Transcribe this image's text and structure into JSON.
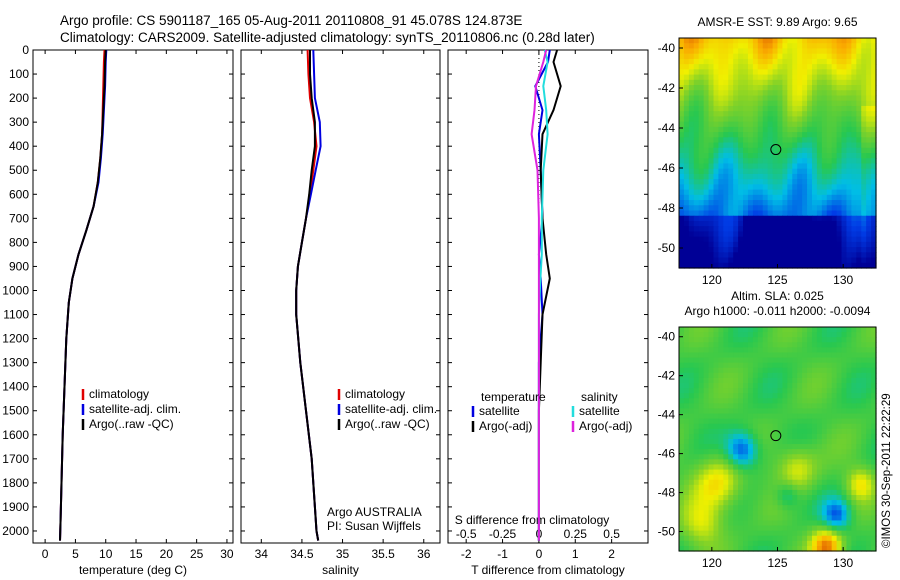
{
  "header": {
    "line1": "Argo profile: CS 5901187_165 05-Aug-2011 20110808_91 45.078S 124.873E",
    "line2": "Climatology: CARS2009. Satellite-adjusted climatology: synTS_20110806.nc (0.28d later)"
  },
  "timestamp": "©IMOS 30-Sep-2011 22:22:29",
  "colors": {
    "climatology": "#e00000",
    "satellite": "#0000e0",
    "argo": "#000000",
    "sal_satellite": "#22dddd",
    "sal_argo": "#dd22dd"
  },
  "chart_data": [
    {
      "type": "line",
      "xlabel": "temperature (deg C)",
      "ylabel": "",
      "xlim": [
        -2,
        31
      ],
      "ylim": [
        2050,
        0
      ],
      "xticks": [
        0,
        5,
        10,
        15,
        20,
        25,
        30
      ],
      "yticks": [
        0,
        100,
        200,
        300,
        400,
        500,
        600,
        700,
        800,
        900,
        1000,
        1100,
        1200,
        1300,
        1400,
        1500,
        1600,
        1700,
        1800,
        1900,
        2000
      ],
      "legend": [
        "climatology",
        "satellite-adj. clim.",
        "Argo(..raw -QC)"
      ],
      "series": [
        {
          "name": "climatology",
          "x": [
            9.8,
            9.7,
            9.6,
            9.5,
            9.4,
            9.1,
            8.7,
            8.0,
            6.8,
            5.5,
            4.5,
            3.9,
            3.5,
            3.2,
            2.9,
            2.7,
            2.55,
            2.45
          ],
          "y": [
            0,
            50,
            150,
            250,
            350,
            450,
            550,
            650,
            750,
            850,
            950,
            1050,
            1200,
            1400,
            1600,
            1800,
            1950,
            2040
          ]
        },
        {
          "name": "satellite-adj. clim.",
          "x": [
            10.1,
            10.0,
            9.9,
            9.7,
            9.5,
            9.2,
            8.8,
            8.0,
            6.8,
            5.5,
            4.5,
            3.9,
            3.5,
            3.2,
            2.9,
            2.7,
            2.55,
            2.45
          ],
          "y": [
            0,
            50,
            150,
            250,
            350,
            450,
            550,
            650,
            750,
            850,
            950,
            1050,
            1200,
            1400,
            1600,
            1800,
            1950,
            2040
          ]
        },
        {
          "name": "Argo(..raw -QC)",
          "x": [
            10.0,
            9.9,
            9.8,
            9.6,
            9.4,
            9.1,
            8.7,
            8.0,
            6.8,
            5.5,
            4.5,
            3.9,
            3.5,
            3.2,
            2.9,
            2.7,
            2.55,
            2.45
          ],
          "y": [
            0,
            50,
            150,
            250,
            350,
            450,
            550,
            650,
            750,
            850,
            950,
            1050,
            1200,
            1400,
            1600,
            1800,
            1950,
            2040
          ]
        }
      ]
    },
    {
      "type": "line",
      "xlabel": "salinity",
      "xlim": [
        33.75,
        36.2
      ],
      "ylim": [
        2050,
        0
      ],
      "xticks": [
        34,
        34.5,
        35,
        35.5,
        36
      ],
      "legend": [
        "climatology",
        "satellite-adj. clim.",
        "Argo(..raw -QC)"
      ],
      "annotation": [
        "Argo AUSTRALIA",
        "PI: Susan Wijffels"
      ],
      "series": [
        {
          "name": "climatology",
          "x": [
            34.57,
            34.58,
            34.6,
            34.65,
            34.68,
            34.64,
            34.6,
            34.55,
            34.5,
            34.45,
            34.43,
            34.43,
            34.48,
            34.55,
            34.62,
            34.66,
            34.68,
            34.7
          ],
          "y": [
            0,
            100,
            200,
            300,
            400,
            500,
            600,
            700,
            800,
            900,
            1000,
            1100,
            1300,
            1500,
            1700,
            1900,
            2000,
            2040
          ]
        },
        {
          "name": "satellite-adj. clim.",
          "x": [
            34.64,
            34.65,
            34.66,
            34.72,
            34.73,
            34.67,
            34.61,
            34.55,
            34.5,
            34.45,
            34.43,
            34.43,
            34.48,
            34.55,
            34.62,
            34.66,
            34.68,
            34.7
          ],
          "y": [
            0,
            100,
            200,
            300,
            400,
            500,
            600,
            700,
            800,
            900,
            1000,
            1100,
            1300,
            1500,
            1700,
            1900,
            2000,
            2040
          ]
        },
        {
          "name": "Argo(..raw -QC)",
          "x": [
            34.6,
            34.6,
            34.62,
            34.66,
            34.66,
            34.62,
            34.59,
            34.55,
            34.5,
            34.45,
            34.43,
            34.43,
            34.48,
            34.55,
            34.62,
            34.66,
            34.68,
            34.7
          ],
          "y": [
            0,
            100,
            200,
            300,
            400,
            500,
            600,
            700,
            800,
            900,
            1000,
            1100,
            1300,
            1500,
            1700,
            1900,
            2000,
            2040
          ]
        }
      ]
    },
    {
      "type": "line",
      "xlabel": "T difference from climatology",
      "top_axis_label": "S difference from climatology",
      "xlim": [
        -2.5,
        3
      ],
      "ylim": [
        2050,
        0
      ],
      "xticks": [
        -2,
        -1,
        0,
        1,
        2
      ],
      "xtick_labels": [
        "-2",
        "-1",
        "0",
        "1",
        "2"
      ],
      "top_ticks": [
        -0.5,
        -0.25,
        0,
        0.25,
        0.5
      ],
      "legend_groups": [
        {
          "title": "temperature",
          "items": [
            "satellite",
            "Argo(-adj)"
          ]
        },
        {
          "title": "salinity",
          "items": [
            "satellite",
            "Argo(-adj)"
          ]
        }
      ],
      "series": [
        {
          "name": "T satellite",
          "x": [
            0.3,
            0.25,
            -0.1,
            0.1,
            0.0,
            0.05,
            0.1,
            0.0,
            0.05,
            0.1,
            0.0,
            0.0,
            0.0,
            0.0
          ],
          "y": [
            0,
            50,
            150,
            250,
            350,
            500,
            700,
            850,
            950,
            1100,
            1300,
            1500,
            1800,
            2040
          ]
        },
        {
          "name": "T Argo(-adj)",
          "x": [
            0.5,
            0.4,
            0.6,
            0.4,
            0.1,
            0.05,
            0.1,
            0.2,
            0.3,
            0.1,
            0.05,
            0.0,
            0.0,
            0.0
          ],
          "y": [
            0,
            50,
            150,
            250,
            350,
            500,
            700,
            850,
            950,
            1100,
            1300,
            1500,
            1800,
            2040
          ]
        },
        {
          "name": "S satellite",
          "x": [
            0.04,
            0.06,
            0.03,
            0.05,
            0.06,
            0.03,
            0.02,
            0.02,
            0.01,
            0.0,
            0.0,
            0.0,
            0.0,
            0.0
          ],
          "y": [
            0,
            50,
            150,
            250,
            350,
            500,
            700,
            850,
            950,
            1100,
            1300,
            1500,
            1800,
            2040
          ]
        },
        {
          "name": "S Argo(-adj)",
          "x": [
            0.05,
            0.03,
            -0.02,
            -0.03,
            -0.05,
            -0.01,
            0.0,
            0.0,
            0.0,
            0.0,
            0.0,
            0.0,
            0.0,
            0.0
          ],
          "y": [
            0,
            50,
            150,
            250,
            350,
            500,
            700,
            850,
            950,
            1100,
            1300,
            1500,
            1800,
            2040
          ]
        }
      ]
    },
    {
      "type": "heatmap",
      "title": "AMSR-E SST: 9.89 Argo: 9.65",
      "xlim": [
        117.5,
        132.5
      ],
      "ylim": [
        -51,
        -39.5
      ],
      "xticks": [
        120,
        125,
        130
      ],
      "yticks": [
        -40,
        -42,
        -44,
        -46,
        -48,
        -50
      ],
      "marker": {
        "x": 124.873,
        "y": -45.078
      }
    },
    {
      "type": "heatmap",
      "title": "Altim. SLA: 0.025",
      "subtitle": "Argo h1000: -0.011 h2000: -0.0094",
      "xlim": [
        117.5,
        132.5
      ],
      "ylim": [
        -51,
        -39.5
      ],
      "xticks": [
        120,
        125,
        130
      ],
      "yticks": [
        -40,
        -42,
        -44,
        -46,
        -48,
        -50
      ],
      "marker": {
        "x": 124.873,
        "y": -45.078
      }
    }
  ]
}
